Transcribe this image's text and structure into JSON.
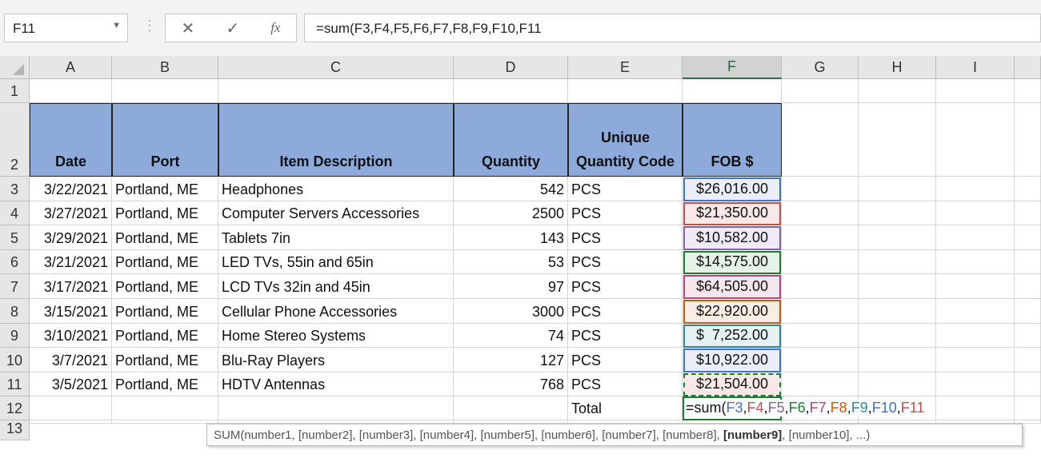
{
  "name_box": "F11",
  "formula_bar": {
    "value": "=sum(F3,F4,F5,F6,F7,F8,F9,F10,F11",
    "cancel_icon": "✕",
    "enter_icon": "✓",
    "fx_icon": "fx"
  },
  "columns": [
    "A",
    "B",
    "C",
    "D",
    "E",
    "F",
    "G",
    "H",
    "I"
  ],
  "selected_column": "F",
  "headers": [
    "Date",
    "Port",
    "Item Description",
    "Quantity",
    "Unique Quantity Code",
    "FOB $"
  ],
  "rows": [
    {
      "date": "3/22/2021",
      "port": "Portland, ME",
      "item": "Headphones",
      "qty": "542",
      "code": "PCS",
      "fob": "$26,016.00",
      "color": "#4472c4",
      "fill": "#e9eef8"
    },
    {
      "date": "3/27/2021",
      "port": "Portland, ME",
      "item": "Computer Servers Accessories",
      "qty": "2500",
      "code": "PCS",
      "fob": "$21,350.00",
      "color": "#c0504d",
      "fill": "#f8e8e8"
    },
    {
      "date": "3/29/2021",
      "port": "Portland, ME",
      "item": "Tablets 7in",
      "qty": "143",
      "code": "PCS",
      "fob": "$10,582.00",
      "color": "#8064a2",
      "fill": "#efeaf5"
    },
    {
      "date": "3/21/2021",
      "port": "Portland, ME",
      "item": "LED TVs, 55in and 65in",
      "qty": "53",
      "code": "PCS",
      "fob": "$14,575.00",
      "color": "#1e7b34",
      "fill": "#e6f2e8"
    },
    {
      "date": "3/17/2021",
      "port": "Portland, ME",
      "item": "LCD TVs 32in and 45in",
      "qty": "97",
      "code": "PCS",
      "fob": "$64,505.00",
      "color": "#b0457f",
      "fill": "#f6e7ef"
    },
    {
      "date": "3/15/2021",
      "port": "Portland, ME",
      "item": "Cellular Phone Accessories",
      "qty": "3000",
      "code": "PCS",
      "fob": "$22,920.00",
      "color": "#c65911",
      "fill": "#f9ece3"
    },
    {
      "date": "3/10/2021",
      "port": "Portland, ME",
      "item": "Home Stereo Systems",
      "qty": "74",
      "code": "PCS",
      "fob": "$  7,252.00",
      "color": "#31859c",
      "fill": "#e6f1f4"
    },
    {
      "date": "3/7/2021",
      "port": "Portland, ME",
      "item": "Blu-Ray Players",
      "qty": "127",
      "code": "PCS",
      "fob": "$10,922.00",
      "color": "#4472c4",
      "fill": "#e9eef8"
    },
    {
      "date": "3/5/2021",
      "port": "Portland, ME",
      "item": "HDTV Antennas",
      "qty": "768",
      "code": "PCS",
      "fob": "$21,504.00",
      "color": "#c0504d",
      "fill": "#f8e8e8"
    }
  ],
  "total_label": "Total",
  "edit_formula": {
    "prefix": "=sum(",
    "refs": [
      "F3",
      "F4",
      "F5",
      "F6",
      "F7",
      "F8",
      "F9",
      "F10",
      "F11"
    ]
  },
  "tooltip": {
    "before": "SUM(number1, [number2], [number3], [number4], [number5], [number6], [number7], [number8], ",
    "bold": "[number9]",
    "after": ", [number10], ...)"
  }
}
